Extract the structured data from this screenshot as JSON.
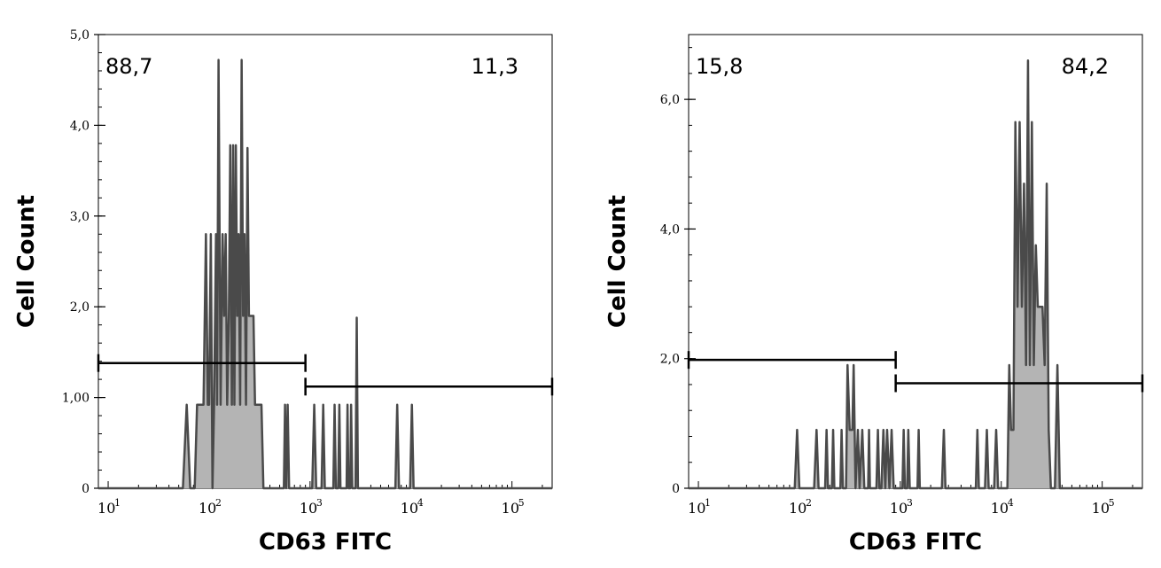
{
  "colors": {
    "histogram_fill": "#b4b4b4",
    "histogram_line": "#4a4a4a",
    "axis": "#000000",
    "gate": "#000000"
  },
  "chart_data": [
    {
      "type": "histogram",
      "xlabel": "CD63 FITC",
      "ylabel": "Cell Count",
      "x_scale": "log",
      "xlim": [
        8,
        250000
      ],
      "ylim": [
        0,
        5.0
      ],
      "y_ticks": [
        {
          "value": 0,
          "label": "0"
        },
        {
          "value": 1.0,
          "label": "1,00"
        },
        {
          "value": 2.0,
          "label": "2,0"
        },
        {
          "value": 3.0,
          "label": "3,0"
        },
        {
          "value": 4.0,
          "label": "4,0"
        },
        {
          "value": 5.0,
          "label": "5,0"
        }
      ],
      "x_ticks": [
        {
          "value": 10,
          "base": "10",
          "exp": "1"
        },
        {
          "value": 100,
          "base": "10",
          "exp": "2"
        },
        {
          "value": 1000,
          "base": "10",
          "exp": "3"
        },
        {
          "value": 10000,
          "base": "10",
          "exp": "4"
        },
        {
          "value": 100000,
          "base": "10",
          "exp": "5"
        }
      ],
      "gates": [
        {
          "label": "88,7",
          "x_range": [
            8,
            900
          ],
          "y": 1.38,
          "label_position": "top-left"
        },
        {
          "label": "11,3",
          "x_range": [
            900,
            250000
          ],
          "y": 1.12,
          "label_position": "top-right"
        }
      ],
      "points": [
        [
          8,
          0
        ],
        [
          55,
          0
        ],
        [
          60,
          0.92
        ],
        [
          65,
          0
        ],
        [
          72,
          0
        ],
        [
          76,
          0.92
        ],
        [
          88,
          0.92
        ],
        [
          93,
          2.8
        ],
        [
          97,
          0.92
        ],
        [
          100,
          0.92
        ],
        [
          104,
          2.8
        ],
        [
          108,
          0
        ],
        [
          112,
          0.92
        ],
        [
          117,
          2.8
        ],
        [
          120,
          0.92
        ],
        [
          124,
          4.72
        ],
        [
          130,
          0.92
        ],
        [
          136,
          2.8
        ],
        [
          141,
          1.9
        ],
        [
          146,
          2.8
        ],
        [
          151,
          0.92
        ],
        [
          157,
          1.9
        ],
        [
          162,
          3.78
        ],
        [
          168,
          0.92
        ],
        [
          173,
          3.78
        ],
        [
          178,
          0.92
        ],
        [
          184,
          3.78
        ],
        [
          190,
          1.9
        ],
        [
          196,
          2.8
        ],
        [
          203,
          0.92
        ],
        [
          210,
          4.72
        ],
        [
          217,
          1.9
        ],
        [
          224,
          2.8
        ],
        [
          232,
          0.92
        ],
        [
          240,
          3.75
        ],
        [
          248,
          1.9
        ],
        [
          256,
          1.9
        ],
        [
          275,
          1.9
        ],
        [
          285,
          0.92
        ],
        [
          300,
          0.92
        ],
        [
          330,
          0.92
        ],
        [
          345,
          0
        ],
        [
          550,
          0
        ],
        [
          565,
          0.92
        ],
        [
          580,
          0
        ],
        [
          600,
          0.92
        ],
        [
          620,
          0
        ],
        [
          1050,
          0
        ],
        [
          1100,
          0.92
        ],
        [
          1150,
          0
        ],
        [
          1300,
          0
        ],
        [
          1350,
          0.92
        ],
        [
          1400,
          0
        ],
        [
          1700,
          0
        ],
        [
          1750,
          0.92
        ],
        [
          1800,
          0
        ],
        [
          1900,
          0
        ],
        [
          1950,
          0.92
        ],
        [
          2000,
          0
        ],
        [
          2300,
          0
        ],
        [
          2350,
          0.92
        ],
        [
          2400,
          0
        ],
        [
          2500,
          0
        ],
        [
          2550,
          0.92
        ],
        [
          2620,
          0
        ],
        [
          2820,
          0
        ],
        [
          2900,
          1.88
        ],
        [
          2980,
          0
        ],
        [
          7000,
          0
        ],
        [
          7300,
          0.92
        ],
        [
          7600,
          0
        ],
        [
          9800,
          0
        ],
        [
          10200,
          0.92
        ],
        [
          10600,
          0
        ],
        [
          250000,
          0
        ]
      ]
    },
    {
      "type": "histogram",
      "xlabel": "CD63 FITC",
      "ylabel": "Cell Count",
      "x_scale": "log",
      "xlim": [
        8,
        250000
      ],
      "ylim": [
        0,
        7.0
      ],
      "y_ticks": [
        {
          "value": 0,
          "label": "0"
        },
        {
          "value": 2.0,
          "label": "2,0"
        },
        {
          "value": 4.0,
          "label": "4,0"
        },
        {
          "value": 6.0,
          "label": "6,0"
        }
      ],
      "x_ticks": [
        {
          "value": 10,
          "base": "10",
          "exp": "1"
        },
        {
          "value": 100,
          "base": "10",
          "exp": "2"
        },
        {
          "value": 1000,
          "base": "10",
          "exp": "3"
        },
        {
          "value": 10000,
          "base": "10",
          "exp": "4"
        },
        {
          "value": 100000,
          "base": "10",
          "exp": "5"
        }
      ],
      "gates": [
        {
          "label": "15,8",
          "x_range": [
            8,
            900
          ],
          "y": 1.98,
          "label_position": "top-left"
        },
        {
          "label": "84,2",
          "x_range": [
            900,
            250000
          ],
          "y": 1.62,
          "label_position": "top-right"
        }
      ],
      "points": [
        [
          8,
          0
        ],
        [
          90,
          0
        ],
        [
          95,
          0.9
        ],
        [
          100,
          0
        ],
        [
          140,
          0
        ],
        [
          148,
          0.9
        ],
        [
          155,
          0
        ],
        [
          180,
          0
        ],
        [
          186,
          0.9
        ],
        [
          192,
          0
        ],
        [
          210,
          0
        ],
        [
          216,
          0.9
        ],
        [
          222,
          0
        ],
        [
          255,
          0
        ],
        [
          262,
          0.9
        ],
        [
          270,
          0
        ],
        [
          290,
          0
        ],
        [
          300,
          1.9
        ],
        [
          315,
          0.9
        ],
        [
          335,
          0.9
        ],
        [
          345,
          1.9
        ],
        [
          360,
          0
        ],
        [
          380,
          0.9
        ],
        [
          395,
          0
        ],
        [
          420,
          0.9
        ],
        [
          440,
          0
        ],
        [
          480,
          0
        ],
        [
          490,
          0.9
        ],
        [
          500,
          0
        ],
        [
          580,
          0
        ],
        [
          600,
          0.9
        ],
        [
          620,
          0
        ],
        [
          650,
          0
        ],
        [
          680,
          0.9
        ],
        [
          710,
          0
        ],
        [
          740,
          0.9
        ],
        [
          780,
          0
        ],
        [
          820,
          0.9
        ],
        [
          860,
          0
        ],
        [
          1050,
          0
        ],
        [
          1080,
          0.9
        ],
        [
          1110,
          0
        ],
        [
          1170,
          0
        ],
        [
          1200,
          0.9
        ],
        [
          1240,
          0
        ],
        [
          1480,
          0
        ],
        [
          1520,
          0.9
        ],
        [
          1560,
          0
        ],
        [
          2580,
          0
        ],
        [
          2700,
          0.9
        ],
        [
          2800,
          0
        ],
        [
          5600,
          0
        ],
        [
          5800,
          0.9
        ],
        [
          6000,
          0
        ],
        [
          6900,
          0
        ],
        [
          7200,
          0.9
        ],
        [
          7500,
          0
        ],
        [
          8500,
          0
        ],
        [
          8900,
          0.9
        ],
        [
          9300,
          0
        ],
        [
          11500,
          0
        ],
        [
          12000,
          1.9
        ],
        [
          12500,
          0.9
        ],
        [
          13200,
          0.9
        ],
        [
          13800,
          5.65
        ],
        [
          14500,
          2.8
        ],
        [
          15200,
          5.65
        ],
        [
          16000,
          2.8
        ],
        [
          16800,
          4.7
        ],
        [
          17600,
          1.9
        ],
        [
          18400,
          6.6
        ],
        [
          19200,
          1.9
        ],
        [
          20100,
          5.65
        ],
        [
          21000,
          1.9
        ],
        [
          22000,
          3.75
        ],
        [
          23000,
          2.8
        ],
        [
          24300,
          2.8
        ],
        [
          25600,
          2.8
        ],
        [
          26900,
          1.9
        ],
        [
          28200,
          4.7
        ],
        [
          29500,
          0.9
        ],
        [
          31000,
          0
        ],
        [
          34000,
          0
        ],
        [
          36000,
          1.9
        ],
        [
          38000,
          0
        ],
        [
          250000,
          0
        ]
      ]
    }
  ]
}
